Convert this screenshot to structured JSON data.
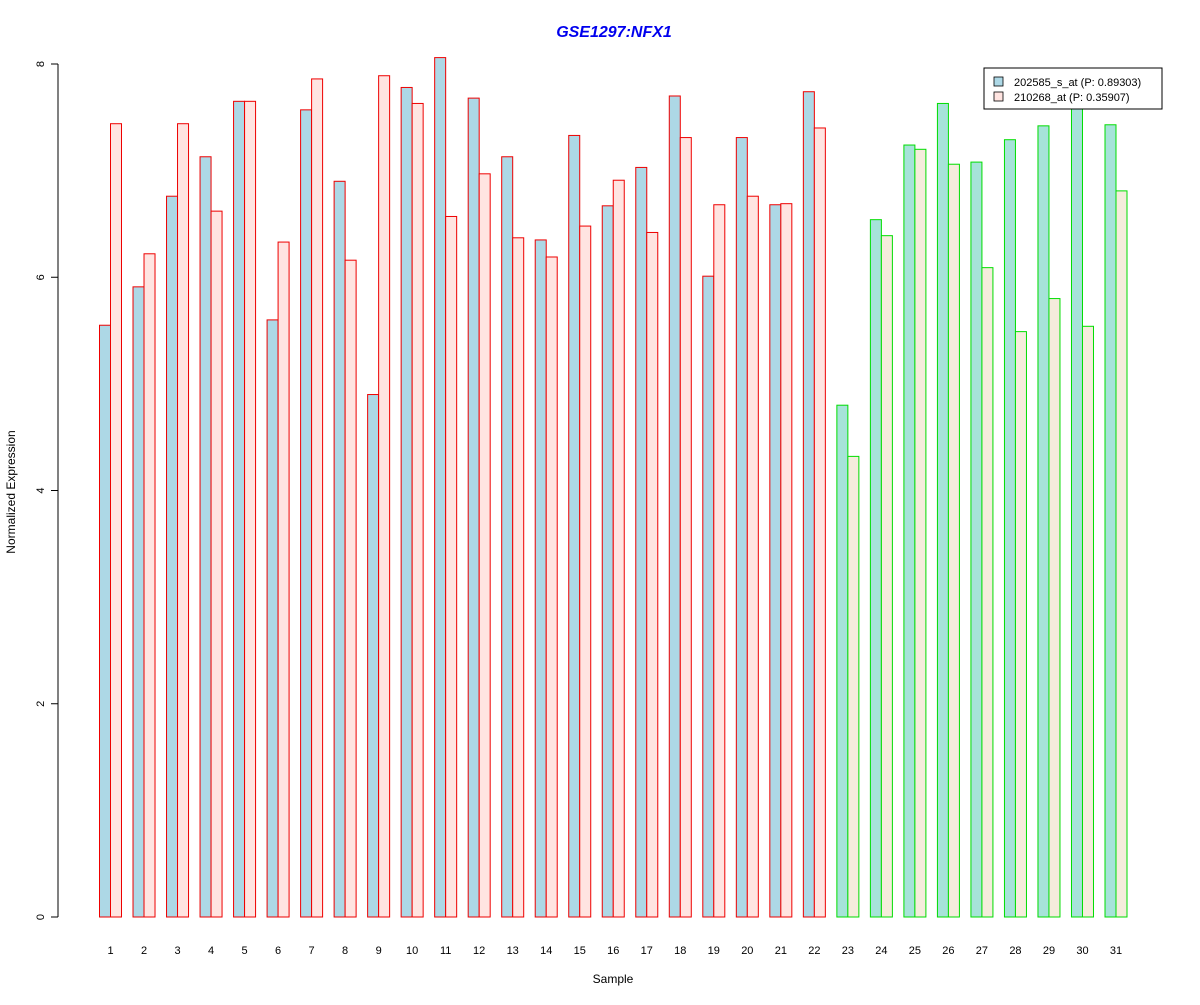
{
  "colors": {
    "title": "#0000ee",
    "series1_fill_group1": "#add8e6",
    "series2_fill_group1": "#ffe4e1",
    "outline_group1": "#ee0000",
    "series1_fill_group2": "#a6e3d9",
    "series2_fill_group2": "#f5ecdc",
    "outline_group2": "#00dd00",
    "axis": "#000000"
  },
  "chart_data": {
    "type": "bar",
    "title": "GSE1297:NFX1",
    "xlabel": "Sample",
    "ylabel": "Normalized Expression",
    "ylim": [
      0,
      8
    ],
    "yticks": [
      0,
      2,
      4,
      6,
      8
    ],
    "grid": false,
    "legend_position": "top-right",
    "categories": [
      "1",
      "2",
      "3",
      "4",
      "5",
      "6",
      "7",
      "8",
      "9",
      "10",
      "11",
      "12",
      "13",
      "14",
      "15",
      "16",
      "17",
      "18",
      "19",
      "20",
      "21",
      "22",
      "23",
      "24",
      "25",
      "26",
      "27",
      "28",
      "29",
      "30",
      "31"
    ],
    "group_of_category": [
      1,
      1,
      1,
      1,
      1,
      1,
      1,
      1,
      1,
      1,
      1,
      1,
      1,
      1,
      1,
      1,
      1,
      1,
      1,
      1,
      1,
      1,
      2,
      2,
      2,
      2,
      2,
      2,
      2,
      2,
      2
    ],
    "series": [
      {
        "name": "202585_s_at (P: 0.89303)",
        "values": [
          5.55,
          5.91,
          6.76,
          7.13,
          7.65,
          5.6,
          7.57,
          6.9,
          4.9,
          7.78,
          8.06,
          7.68,
          7.13,
          6.35,
          7.33,
          6.67,
          7.03,
          7.7,
          6.01,
          7.31,
          6.68,
          7.74,
          4.8,
          6.54,
          7.24,
          7.63,
          7.08,
          7.29,
          7.42,
          7.6,
          7.43
        ]
      },
      {
        "name": "210268_at (P: 0.35907)",
        "values": [
          7.44,
          6.22,
          7.44,
          6.62,
          7.65,
          6.33,
          7.86,
          6.16,
          7.89,
          7.63,
          6.57,
          6.97,
          6.37,
          6.19,
          6.48,
          6.91,
          6.42,
          7.31,
          6.68,
          6.76,
          6.69,
          7.4,
          4.32,
          6.39,
          7.2,
          7.06,
          6.09,
          5.49,
          5.8,
          5.54,
          6.81
        ]
      }
    ]
  }
}
